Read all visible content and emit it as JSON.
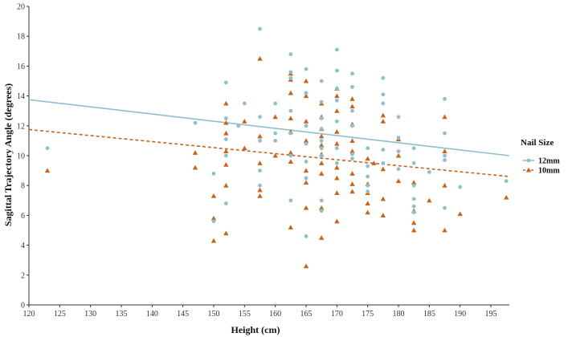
{
  "chart_data": {
    "type": "scatter",
    "title": "",
    "xlabel": "Height (cm)",
    "ylabel": "Sagittal Trajectory Angle (degrees)",
    "xlim": [
      120,
      198
    ],
    "ylim": [
      0,
      20
    ],
    "xticks": [
      120,
      125,
      130,
      135,
      140,
      145,
      150,
      155,
      160,
      165,
      170,
      175,
      180,
      185,
      190,
      195
    ],
    "yticks": [
      0,
      2,
      4,
      6,
      8,
      10,
      12,
      14,
      16,
      18,
      20
    ],
    "legend": {
      "title": "Nail Size",
      "position": "right"
    },
    "series": [
      {
        "name": "12mm",
        "color": "#8fbfcc",
        "marker": "circle",
        "trend": {
          "x": [
            120,
            198
          ],
          "y": [
            13.75,
            10.0
          ],
          "style": "solid"
        },
        "points": [
          [
            123,
            10.5
          ],
          [
            147,
            12.2
          ],
          [
            150,
            8.8
          ],
          [
            150,
            5.6
          ],
          [
            152,
            14.9
          ],
          [
            152,
            12.5
          ],
          [
            152,
            11.1
          ],
          [
            152,
            10.0
          ],
          [
            152,
            6.8
          ],
          [
            154,
            12.0
          ],
          [
            155,
            13.5
          ],
          [
            157.5,
            18.5
          ],
          [
            157.5,
            12.6
          ],
          [
            157.5,
            11.0
          ],
          [
            157.5,
            9.0
          ],
          [
            157.5,
            8.0
          ],
          [
            160,
            13.5
          ],
          [
            160,
            11.5
          ],
          [
            160,
            11.0
          ],
          [
            162.5,
            16.8
          ],
          [
            162.5,
            15.6
          ],
          [
            162.5,
            15.2
          ],
          [
            162.5,
            13.0
          ],
          [
            162.5,
            11.5
          ],
          [
            162.5,
            10.0
          ],
          [
            162.5,
            7.0
          ],
          [
            165,
            15.8
          ],
          [
            165,
            14.2
          ],
          [
            165,
            12.0
          ],
          [
            165,
            10.8
          ],
          [
            165,
            9.6
          ],
          [
            165,
            8.5
          ],
          [
            165,
            4.6
          ],
          [
            167.5,
            15.0
          ],
          [
            167.5,
            13.6
          ],
          [
            167.5,
            12.5
          ],
          [
            167.5,
            11.8
          ],
          [
            167.5,
            11.0
          ],
          [
            167.5,
            10.5
          ],
          [
            167.5,
            10.0
          ],
          [
            167.5,
            7.0
          ],
          [
            167.5,
            6.3
          ],
          [
            170,
            17.1
          ],
          [
            170,
            15.7
          ],
          [
            170,
            14.5
          ],
          [
            170,
            13.7
          ],
          [
            170,
            12.3
          ],
          [
            170,
            10.5
          ],
          [
            170,
            9.5
          ],
          [
            172.5,
            15.5
          ],
          [
            172.5,
            14.6
          ],
          [
            172.5,
            13.0
          ],
          [
            172.5,
            12.0
          ],
          [
            172.5,
            10.1
          ],
          [
            172.5,
            9.8
          ],
          [
            175,
            10.5
          ],
          [
            175,
            9.3
          ],
          [
            175,
            8.6
          ],
          [
            175,
            8.0
          ],
          [
            175,
            7.6
          ],
          [
            177.5,
            15.2
          ],
          [
            177.5,
            14.1
          ],
          [
            177.5,
            13.5
          ],
          [
            177.5,
            10.4
          ],
          [
            177.5,
            9.5
          ],
          [
            180,
            12.6
          ],
          [
            180,
            11.2
          ],
          [
            180,
            10.3
          ],
          [
            180,
            9.1
          ],
          [
            182.5,
            10.5
          ],
          [
            182.5,
            9.5
          ],
          [
            182.5,
            8.0
          ],
          [
            182.5,
            7.1
          ],
          [
            182.5,
            6.6
          ],
          [
            182.5,
            6.2
          ],
          [
            185,
            8.9
          ],
          [
            187.5,
            13.8
          ],
          [
            187.5,
            11.5
          ],
          [
            187.5,
            10.0
          ],
          [
            187.5,
            9.7
          ],
          [
            187.5,
            6.5
          ],
          [
            190,
            7.9
          ],
          [
            197.5,
            8.3
          ]
        ]
      },
      {
        "name": "10mm",
        "color": "#c8641e",
        "marker": "triangle",
        "trend": {
          "x": [
            120,
            198
          ],
          "y": [
            11.75,
            8.6
          ],
          "style": "dashed"
        },
        "points": [
          [
            123,
            9.0
          ],
          [
            147,
            10.2
          ],
          [
            147,
            9.2
          ],
          [
            150,
            7.3
          ],
          [
            150,
            5.8
          ],
          [
            150,
            4.3
          ],
          [
            152,
            13.5
          ],
          [
            152,
            12.2
          ],
          [
            152,
            11.5
          ],
          [
            152,
            10.3
          ],
          [
            152,
            9.4
          ],
          [
            152,
            8.0
          ],
          [
            152,
            4.8
          ],
          [
            155,
            12.3
          ],
          [
            155,
            10.5
          ],
          [
            157.5,
            16.5
          ],
          [
            157.5,
            11.3
          ],
          [
            157.5,
            9.5
          ],
          [
            157.5,
            7.7
          ],
          [
            157.5,
            7.3
          ],
          [
            160,
            12.6
          ],
          [
            160,
            10.0
          ],
          [
            162.5,
            15.5
          ],
          [
            162.5,
            15.1
          ],
          [
            162.5,
            14.2
          ],
          [
            162.5,
            12.5
          ],
          [
            162.5,
            11.6
          ],
          [
            162.5,
            10.2
          ],
          [
            162.5,
            9.6
          ],
          [
            162.5,
            5.2
          ],
          [
            165,
            15.0
          ],
          [
            165,
            14.0
          ],
          [
            165,
            12.3
          ],
          [
            165,
            11.0
          ],
          [
            165,
            9.0
          ],
          [
            165,
            8.2
          ],
          [
            165,
            6.5
          ],
          [
            165,
            2.6
          ],
          [
            167.5,
            13.5
          ],
          [
            167.5,
            12.6
          ],
          [
            167.5,
            11.8
          ],
          [
            167.5,
            11.3
          ],
          [
            167.5,
            10.7
          ],
          [
            167.5,
            10.1
          ],
          [
            167.5,
            9.5
          ],
          [
            167.5,
            8.8
          ],
          [
            167.5,
            6.5
          ],
          [
            167.5,
            4.5
          ],
          [
            170,
            14.5
          ],
          [
            170,
            14.0
          ],
          [
            170,
            13.0
          ],
          [
            170,
            11.6
          ],
          [
            170,
            10.8
          ],
          [
            170,
            9.2
          ],
          [
            170,
            8.5
          ],
          [
            170,
            7.5
          ],
          [
            170,
            5.6
          ],
          [
            172.5,
            13.8
          ],
          [
            172.5,
            13.3
          ],
          [
            172.5,
            12.1
          ],
          [
            172.5,
            11.0
          ],
          [
            172.5,
            10.3
          ],
          [
            172.5,
            8.8
          ],
          [
            172.5,
            8.1
          ],
          [
            172.5,
            7.6
          ],
          [
            175,
            9.8
          ],
          [
            175,
            8.1
          ],
          [
            175,
            7.5
          ],
          [
            175,
            6.8
          ],
          [
            175,
            6.2
          ],
          [
            176,
            9.5
          ],
          [
            177.5,
            12.7
          ],
          [
            177.5,
            12.3
          ],
          [
            177.5,
            9.1
          ],
          [
            177.5,
            7.1
          ],
          [
            177.5,
            6.0
          ],
          [
            180,
            11.1
          ],
          [
            180,
            10.0
          ],
          [
            180,
            8.3
          ],
          [
            182.5,
            8.2
          ],
          [
            182.5,
            6.3
          ],
          [
            182.5,
            5.5
          ],
          [
            182.5,
            5.0
          ],
          [
            185,
            7.0
          ],
          [
            187.5,
            12.6
          ],
          [
            187.5,
            10.3
          ],
          [
            187.5,
            8.0
          ],
          [
            187.5,
            5.0
          ],
          [
            190,
            6.1
          ],
          [
            197.5,
            7.2
          ]
        ]
      }
    ]
  }
}
